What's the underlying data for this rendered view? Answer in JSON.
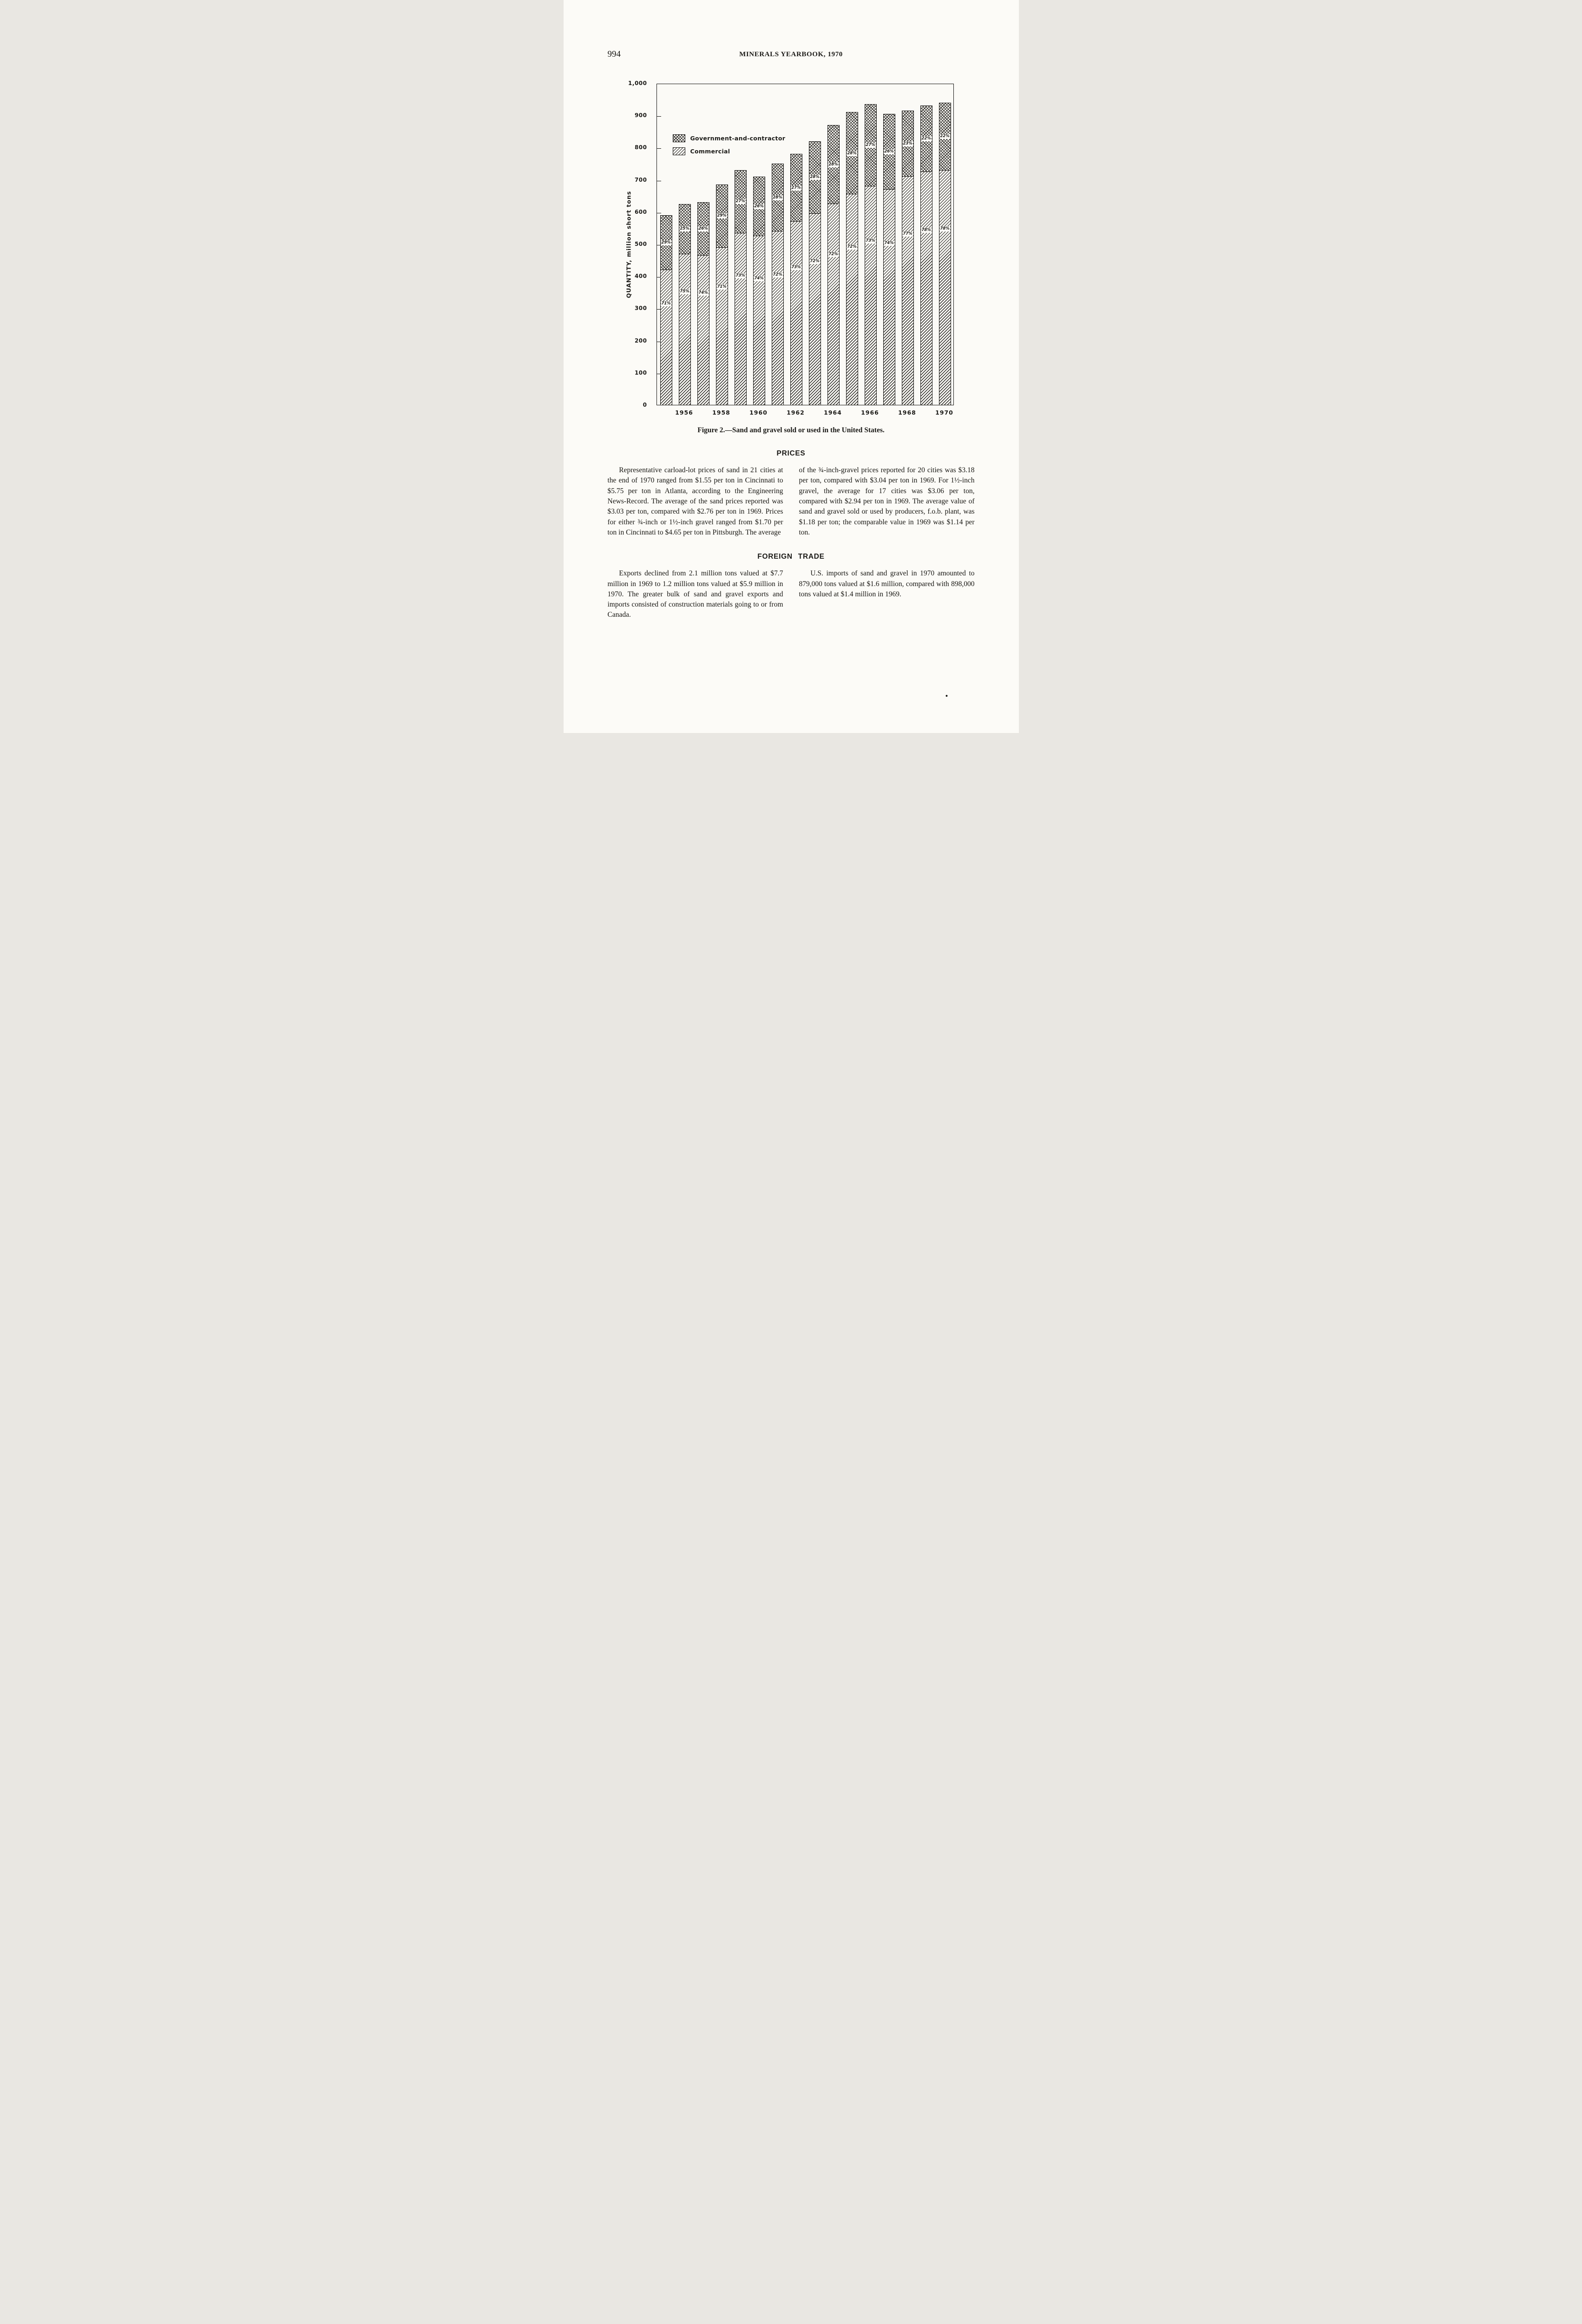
{
  "page": {
    "page_number": "994",
    "running_header": "MINERALS YEARBOOK, 1970",
    "stray_mark": "•"
  },
  "figure": {
    "caption": "Figure 2.—Sand and gravel sold or used in the United States."
  },
  "chart_data": {
    "type": "bar",
    "stacked": true,
    "title": "Sand and gravel sold or used in the United States",
    "xlabel": "",
    "ylabel": "QUANTITY, million short tons",
    "ylim": [
      0,
      1000
    ],
    "grid": false,
    "legend_position": "upper-left-inside",
    "y_ticks": [
      "1,000",
      "900",
      "800",
      "700",
      "600",
      "500",
      "400",
      "300",
      "200",
      "100",
      "0"
    ],
    "x_tick_labels": [
      "1956",
      "1958",
      "1960",
      "1962",
      "1964",
      "1966",
      "1968",
      "1970"
    ],
    "years": [
      1955,
      1956,
      1957,
      1958,
      1959,
      1960,
      1961,
      1962,
      1963,
      1964,
      1965,
      1966,
      1967,
      1968,
      1969,
      1970
    ],
    "series": [
      {
        "name": "Commercial",
        "values": [
          420,
          470,
          465,
          490,
          535,
          525,
          540,
          570,
          595,
          625,
          655,
          680,
          670,
          710,
          725,
          730
        ],
        "percent_labels": [
          "71%",
          "75%",
          "74%",
          "71%",
          "73%",
          "74%",
          "72%",
          "73%",
          "72%",
          "72%",
          "72%",
          "73%",
          "74%",
          "77%",
          "78%",
          "78%"
        ]
      },
      {
        "name": "Government-and-contractor",
        "values": [
          170,
          155,
          165,
          195,
          195,
          185,
          210,
          210,
          225,
          245,
          255,
          255,
          235,
          205,
          205,
          210
        ],
        "percent_labels": [
          "29%",
          "25%",
          "26%",
          "29%",
          "27%",
          "26%",
          "28%",
          "27%",
          "28%",
          "28%",
          "28%",
          "27%",
          "26%",
          "23%",
          "22%",
          "22%"
        ]
      }
    ]
  },
  "sections": [
    {
      "heading": "PRICES",
      "columns": [
        {
          "paragraphs": [
            "Representative carload-lot prices of sand in 21 cities at the end of 1970 ranged from $1.55 per ton in Cincinnati to $5.75 per ton in Atlanta, according to the Engineering News-Record. The average of the sand prices reported was $3.03 per ton, compared with $2.76 per ton in 1969. Prices for either ¾-inch or 1½-inch gravel ranged from $1.70 per ton in Cincinnati to $4.65 per ton in Pittsburgh. The average"
          ]
        },
        {
          "paragraphs": [
            "of the ¾-inch-gravel prices reported for 20 cities was $3.18 per ton, compared with $3.04 per ton in 1969. For 1½-inch gravel, the average for 17 cities was $3.06 per ton, compared with $2.94 per ton in 1969. The average value of sand and gravel sold or used by producers, f.o.b. plant, was $1.18 per ton; the comparable value in 1969 was $1.14 per ton."
          ]
        }
      ]
    },
    {
      "heading": "FOREIGN TRADE",
      "columns": [
        {
          "paragraphs": [
            "Exports declined from 2.1 million tons valued at $7.7 million in 1969 to 1.2 million tons valued at $5.9 million in 1970. The greater bulk of sand and gravel exports and imports consisted of construction materials going to or from Canada."
          ]
        },
        {
          "paragraphs": [
            "U.S. imports of sand and gravel in 1970 amounted to 879,000 tons valued at $1.6 million, compared with 898,000 tons valued at $1.4 million in 1969."
          ]
        }
      ]
    }
  ]
}
